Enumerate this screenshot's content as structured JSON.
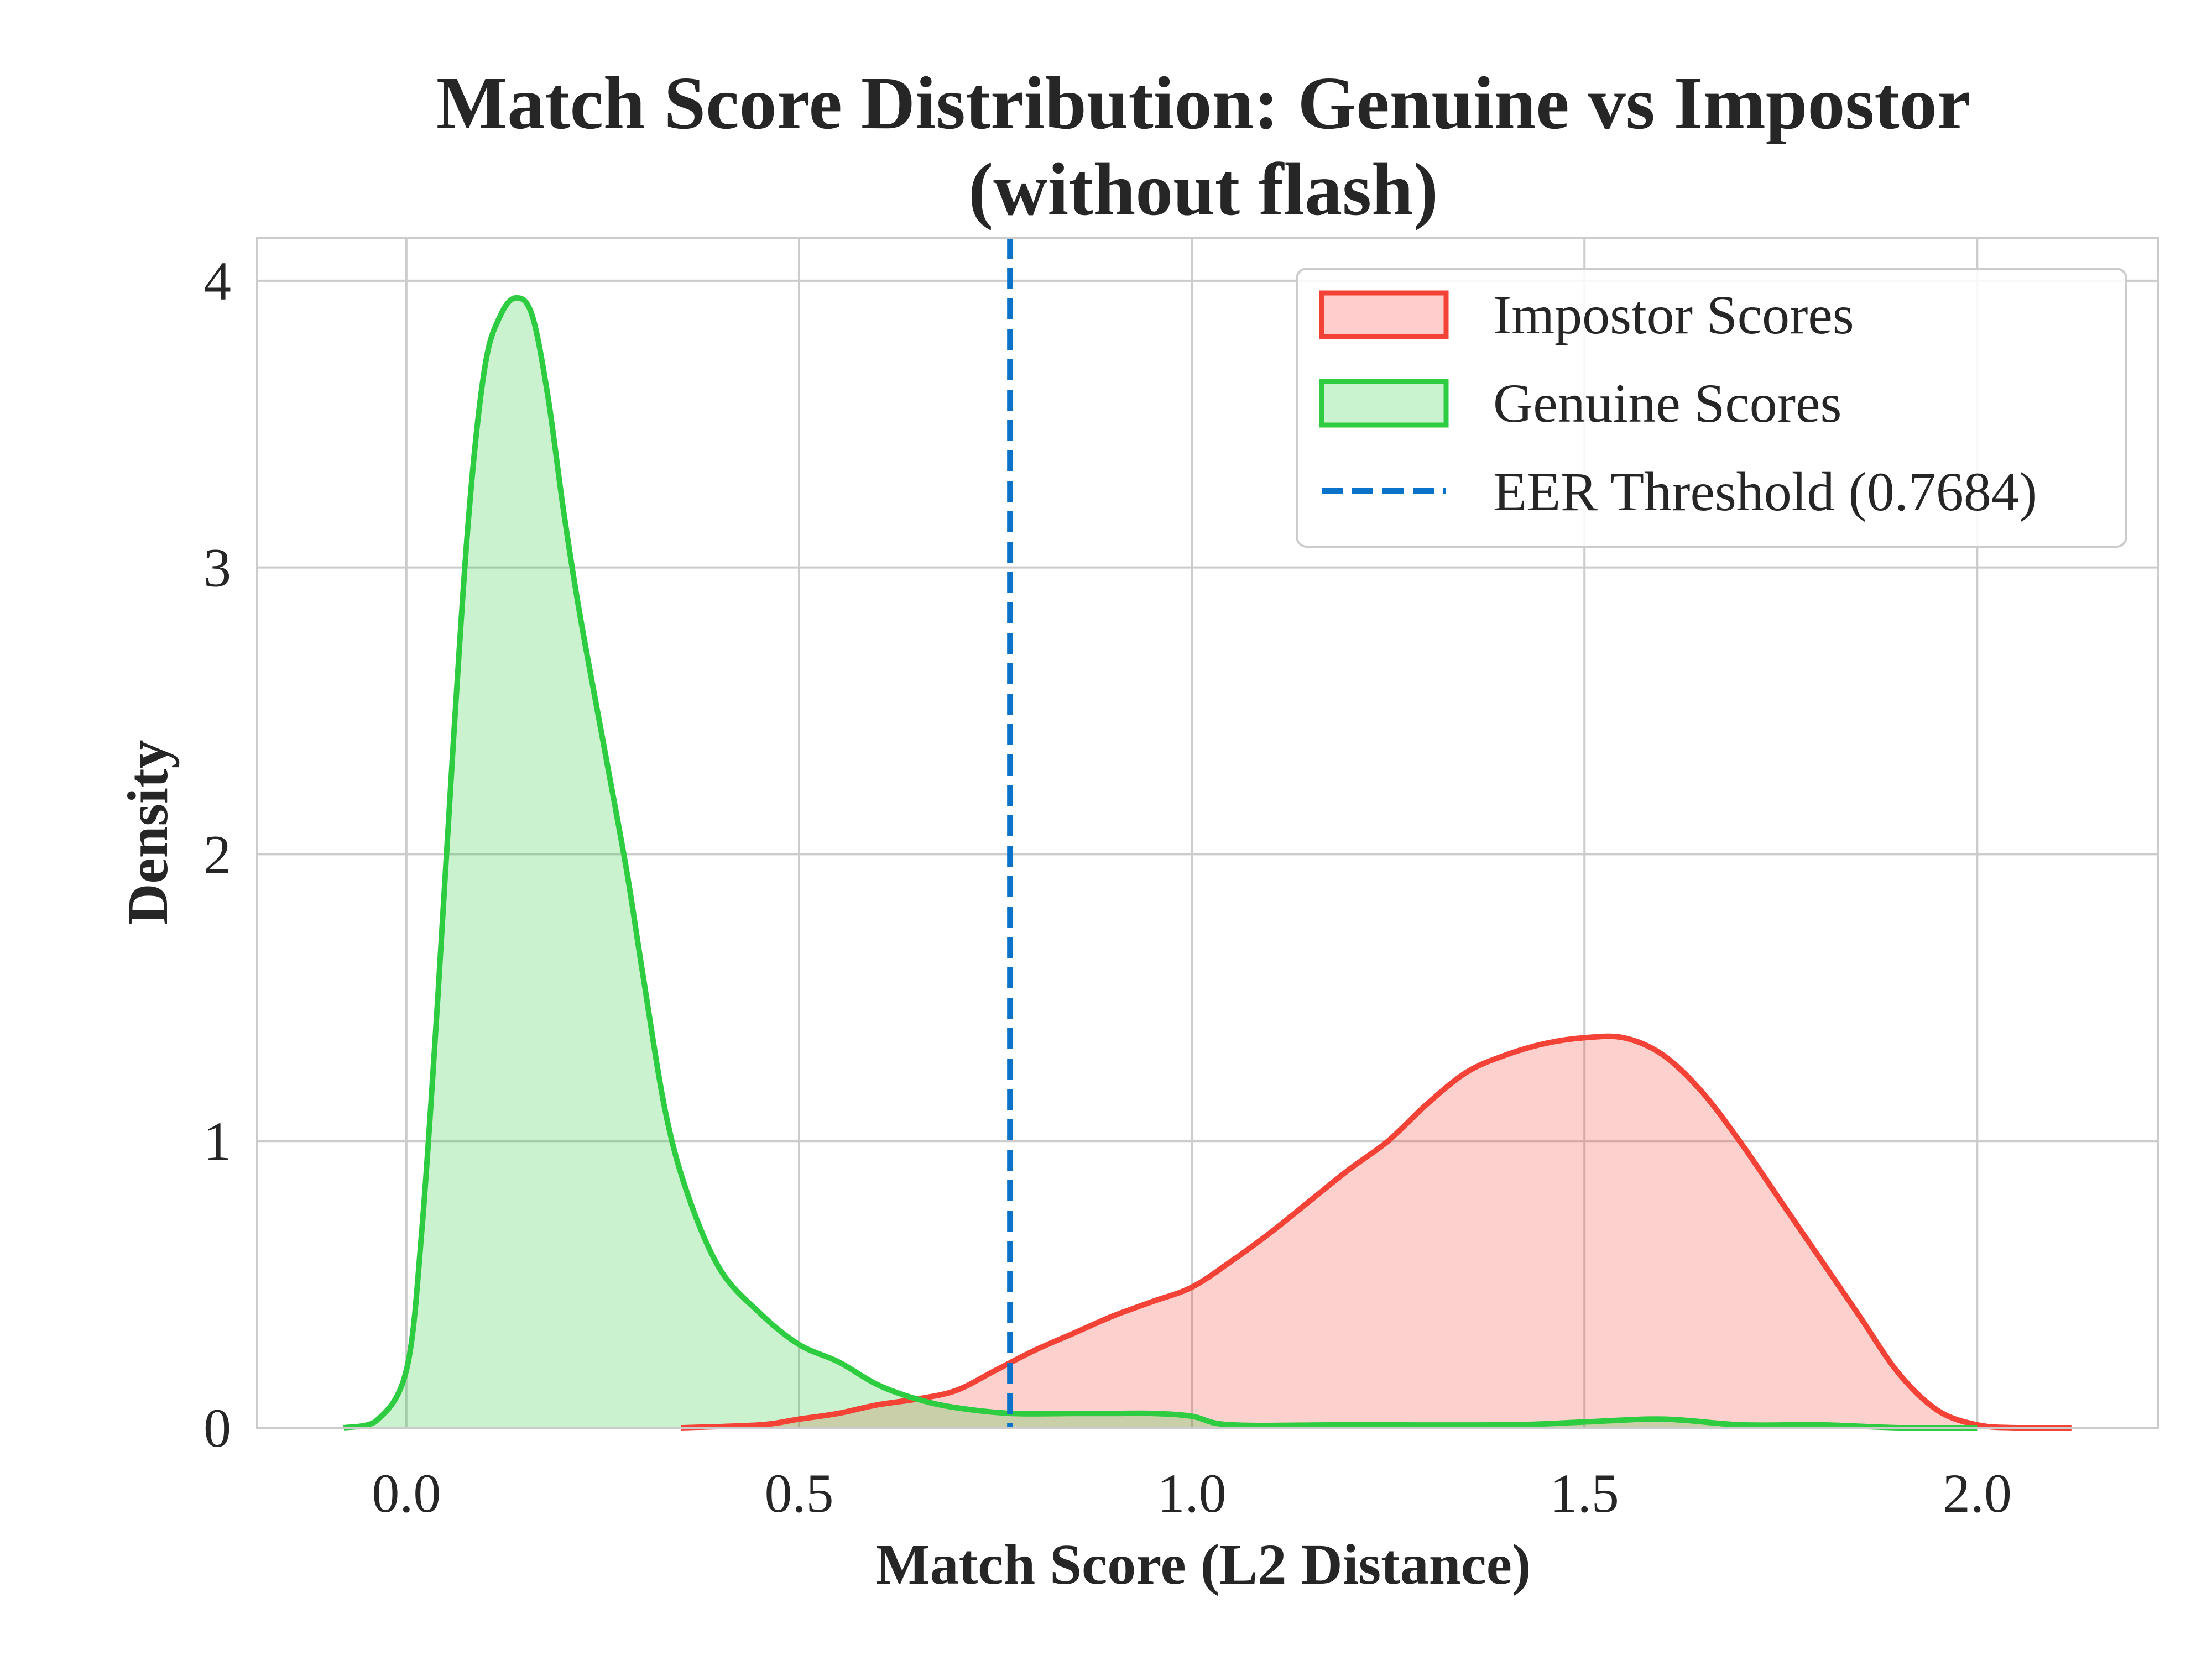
{
  "chart_data": {
    "type": "area",
    "title_lines": [
      "Match Score Distribution: Genuine vs Impostor",
      "(without flash)"
    ],
    "xlabel": "Match Score (L2 Distance)",
    "ylabel": "Density",
    "xlim": [
      -0.19,
      2.23
    ],
    "ylim": [
      0,
      4.15
    ],
    "xticks": [
      0.0,
      0.5,
      1.0,
      1.5,
      2.0
    ],
    "xtick_labels": [
      "0.0",
      "0.5",
      "1.0",
      "1.5",
      "2.0"
    ],
    "yticks": [
      0,
      1,
      2,
      3,
      4
    ],
    "ytick_labels": [
      "0",
      "1",
      "2",
      "3",
      "4"
    ],
    "grid": true,
    "legend_position": "top-right",
    "series": [
      {
        "name": "Impostor Scores",
        "color": "#f44336",
        "fill": "#ffcdcc",
        "x": [
          0.35,
          0.45,
          0.5,
          0.55,
          0.6,
          0.65,
          0.7,
          0.75,
          0.8,
          0.85,
          0.9,
          0.95,
          1.0,
          1.05,
          1.1,
          1.15,
          1.2,
          1.25,
          1.3,
          1.35,
          1.4,
          1.45,
          1.5,
          1.55,
          1.6,
          1.65,
          1.7,
          1.75,
          1.8,
          1.85,
          1.9,
          1.95,
          2.0,
          2.05,
          2.12
        ],
        "y": [
          0.0,
          0.01,
          0.03,
          0.05,
          0.08,
          0.1,
          0.13,
          0.2,
          0.27,
          0.33,
          0.39,
          0.44,
          0.49,
          0.58,
          0.68,
          0.79,
          0.9,
          1.0,
          1.13,
          1.24,
          1.3,
          1.34,
          1.36,
          1.36,
          1.3,
          1.17,
          0.99,
          0.79,
          0.59,
          0.39,
          0.19,
          0.06,
          0.01,
          0.0,
          0.0
        ]
      },
      {
        "name": "Genuine Scores",
        "color": "#2ecc40",
        "fill": "#c9f2cf",
        "x": [
          -0.08,
          -0.04,
          0.0,
          0.02,
          0.04,
          0.06,
          0.08,
          0.1,
          0.12,
          0.14,
          0.16,
          0.18,
          0.2,
          0.22,
          0.25,
          0.28,
          0.3,
          0.33,
          0.36,
          0.4,
          0.45,
          0.5,
          0.55,
          0.6,
          0.65,
          0.7,
          0.77,
          0.85,
          0.9,
          0.95,
          1.0,
          1.05,
          1.2,
          1.4,
          1.5,
          1.6,
          1.7,
          1.8,
          1.9,
          2.0
        ],
        "y": [
          0.0,
          0.02,
          0.2,
          0.7,
          1.5,
          2.4,
          3.2,
          3.7,
          3.88,
          3.94,
          3.88,
          3.6,
          3.2,
          2.85,
          2.4,
          1.95,
          1.6,
          1.1,
          0.8,
          0.55,
          0.4,
          0.29,
          0.23,
          0.15,
          0.1,
          0.07,
          0.05,
          0.05,
          0.05,
          0.05,
          0.04,
          0.01,
          0.01,
          0.01,
          0.02,
          0.03,
          0.01,
          0.01,
          0.0,
          0.0
        ]
      }
    ],
    "threshold": {
      "name": "EER Threshold (0.7684)",
      "value": 0.7684,
      "color": "#0a72c8",
      "style": "dashed"
    }
  }
}
